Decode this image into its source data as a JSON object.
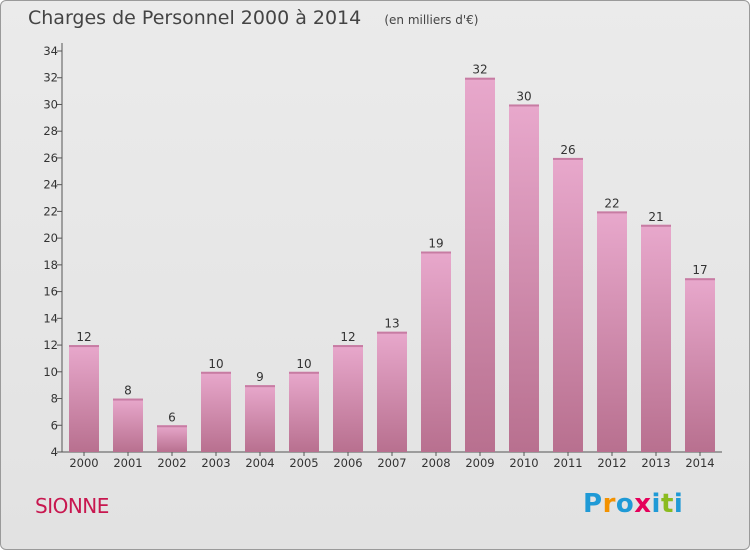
{
  "chart_data": {
    "type": "bar",
    "title": "Charges de Personnel 2000 à 2014",
    "subtitle": "(en milliers d'€)",
    "categories": [
      "2000",
      "2001",
      "2002",
      "2003",
      "2004",
      "2005",
      "2006",
      "2007",
      "2008",
      "2009",
      "2010",
      "2011",
      "2012",
      "2013",
      "2014"
    ],
    "values": [
      12,
      8,
      6,
      10,
      9,
      10,
      12,
      13,
      19,
      32,
      30,
      26,
      22,
      21,
      17
    ],
    "ylim": [
      4,
      34
    ],
    "yticks": [
      4,
      6,
      8,
      10,
      12,
      14,
      16,
      18,
      20,
      22,
      24,
      26,
      28,
      30,
      32,
      34
    ],
    "grid": false,
    "bar_color_top": "#e8a8cc",
    "bar_color_bottom": "#b8708f"
  },
  "place_name": "SIONNE",
  "brand": {
    "letters": [
      "P",
      "r",
      "o",
      "x",
      "i",
      "t",
      "i"
    ],
    "colors": [
      "#1f9ad6",
      "#f39200",
      "#1f9ad6",
      "#e5005a",
      "#1f9ad6",
      "#8bbb1f",
      "#1f9ad6"
    ]
  }
}
